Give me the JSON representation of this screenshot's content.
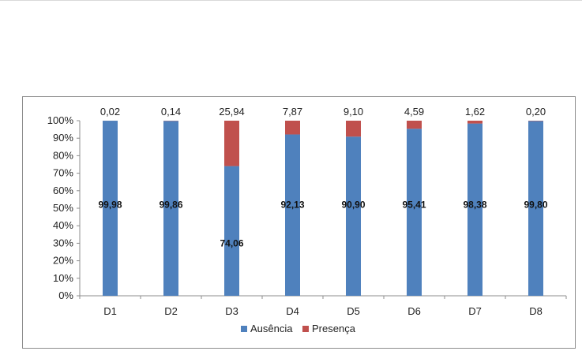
{
  "chart_data": {
    "type": "bar",
    "stacked": true,
    "categories": [
      "D1",
      "D2",
      "D3",
      "D4",
      "D5",
      "D6",
      "D7",
      "D8"
    ],
    "series": [
      {
        "name": "Ausência",
        "color": "#4F81BD",
        "values": [
          99.98,
          99.86,
          74.06,
          92.13,
          90.9,
          95.41,
          98.38,
          99.8
        ],
        "labels": [
          "99,98",
          "99,86",
          "74,06",
          "92,13",
          "90,90",
          "95,41",
          "98,38",
          "99,80"
        ]
      },
      {
        "name": "Presença",
        "color": "#C0504D",
        "values": [
          0.02,
          0.14,
          25.94,
          7.87,
          9.1,
          4.59,
          1.62,
          0.2
        ],
        "labels": [
          "0,02",
          "0,14",
          "25,94",
          "7,87",
          "9,10",
          "4,59",
          "1,62",
          "0,20"
        ]
      }
    ],
    "ylim": [
      0,
      100
    ],
    "yticks": [
      "0%",
      "10%",
      "20%",
      "30%",
      "40%",
      "50%",
      "60%",
      "70%",
      "80%",
      "90%",
      "100%"
    ],
    "grid": false,
    "legend": "bottom",
    "title": "",
    "xlabel": "",
    "ylabel": ""
  }
}
